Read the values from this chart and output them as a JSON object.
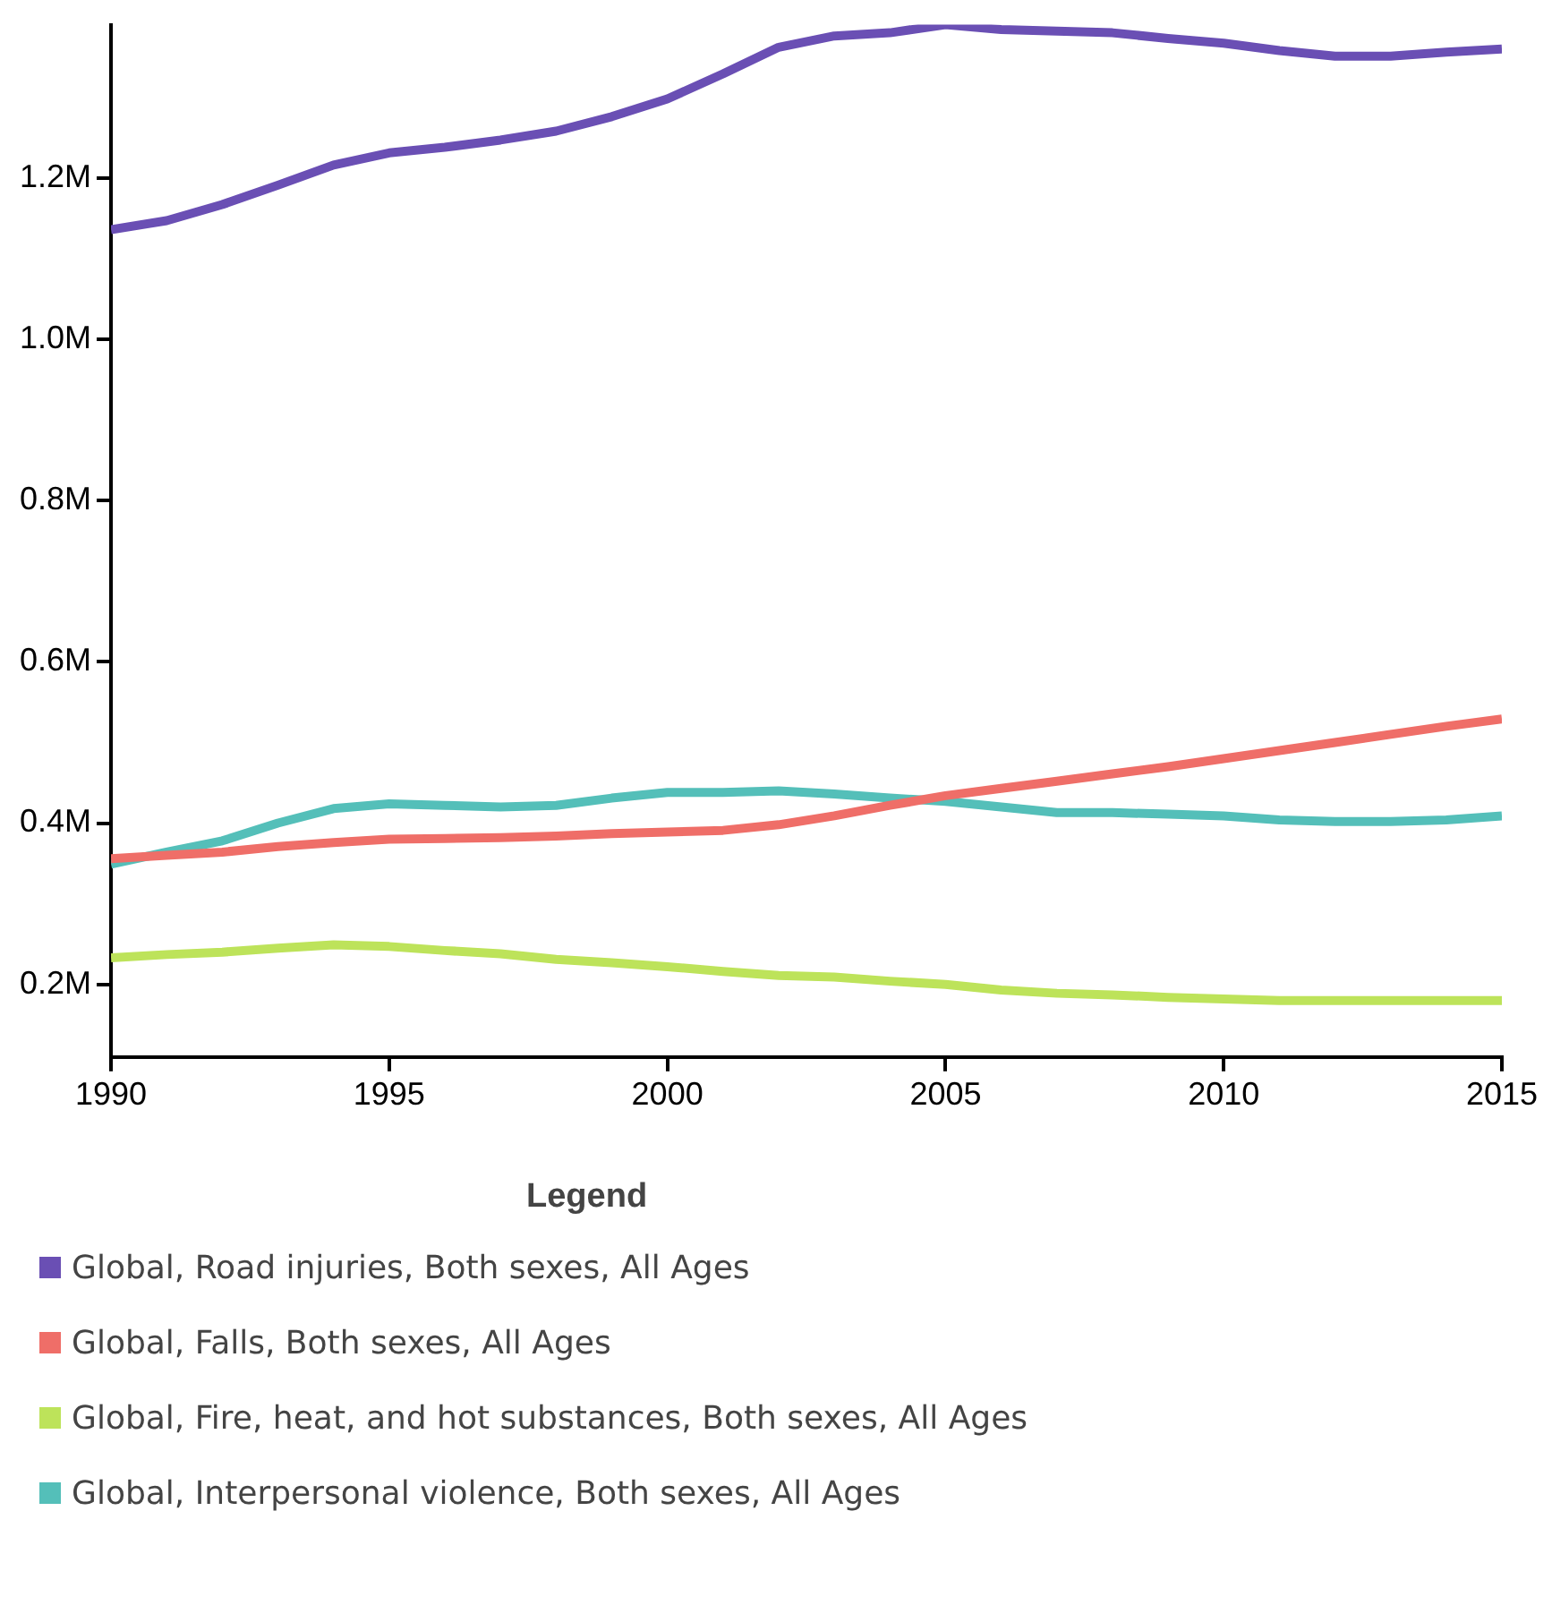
{
  "chart_data": {
    "type": "line",
    "x": [
      1990,
      1991,
      1992,
      1993,
      1994,
      1995,
      1996,
      1997,
      1998,
      1999,
      2000,
      2001,
      2002,
      2003,
      2004,
      2005,
      2006,
      2007,
      2008,
      2009,
      2010,
      2011,
      2012,
      2013,
      2014,
      2015
    ],
    "series": [
      {
        "name": "Global, Road injuries, Both sexes, All Ages",
        "color": "#6a4fb4",
        "values": [
          1136000,
          1147000,
          1167000,
          1191000,
          1216000,
          1231000,
          1238000,
          1247000,
          1258000,
          1276000,
          1298000,
          1329000,
          1362000,
          1376000,
          1380000,
          1390000,
          1384000,
          1382000,
          1380000,
          1373000,
          1367000,
          1358000,
          1351000,
          1351000,
          1356000,
          1360000
        ]
      },
      {
        "name": "Global, Falls, Both sexes, All Ages",
        "color": "#ef6e68",
        "values": [
          356000,
          360000,
          364000,
          371000,
          376000,
          380000,
          381000,
          382000,
          384000,
          387000,
          389000,
          391000,
          398000,
          409000,
          422000,
          434000,
          443000,
          452000,
          461000,
          470000,
          480000,
          490000,
          500000,
          510000,
          520000,
          529000
        ]
      },
      {
        "name": "Global, Fire, heat, and hot substances, Both sexes, All Ages",
        "color": "#bde35a",
        "values": [
          233000,
          237000,
          240000,
          245000,
          249000,
          247000,
          242000,
          238000,
          231000,
          227000,
          222000,
          216000,
          211000,
          209000,
          204000,
          200000,
          193000,
          189000,
          187000,
          184000,
          182000,
          180000,
          180000,
          180000,
          180000,
          180000
        ]
      },
      {
        "name": "Global, Interpersonal violence, Both sexes, All Ages",
        "color": "#54bfb9",
        "values": [
          349000,
          364000,
          378000,
          400000,
          418000,
          424000,
          422000,
          420000,
          422000,
          431000,
          438000,
          438000,
          440000,
          436000,
          431000,
          427000,
          420000,
          413000,
          413000,
          411000,
          409000,
          404000,
          402000,
          402000,
          404000,
          409000
        ]
      }
    ],
    "xlim": [
      1990,
      2015
    ],
    "xticks": [
      1990,
      1995,
      2000,
      2005,
      2010,
      2015
    ],
    "ylim": [
      110000,
      1390000
    ],
    "yticks": [
      {
        "value": 200000,
        "label": "0.2M"
      },
      {
        "value": 400000,
        "label": "0.4M"
      },
      {
        "value": 600000,
        "label": "0.6M"
      },
      {
        "value": 800000,
        "label": "0.8M"
      },
      {
        "value": 1000000,
        "label": "1.0M"
      },
      {
        "value": 1200000,
        "label": "1.2M"
      }
    ],
    "grid": false,
    "legend": "bottom",
    "legend_title": "Legend",
    "marker": "none",
    "line_style": "solid"
  }
}
